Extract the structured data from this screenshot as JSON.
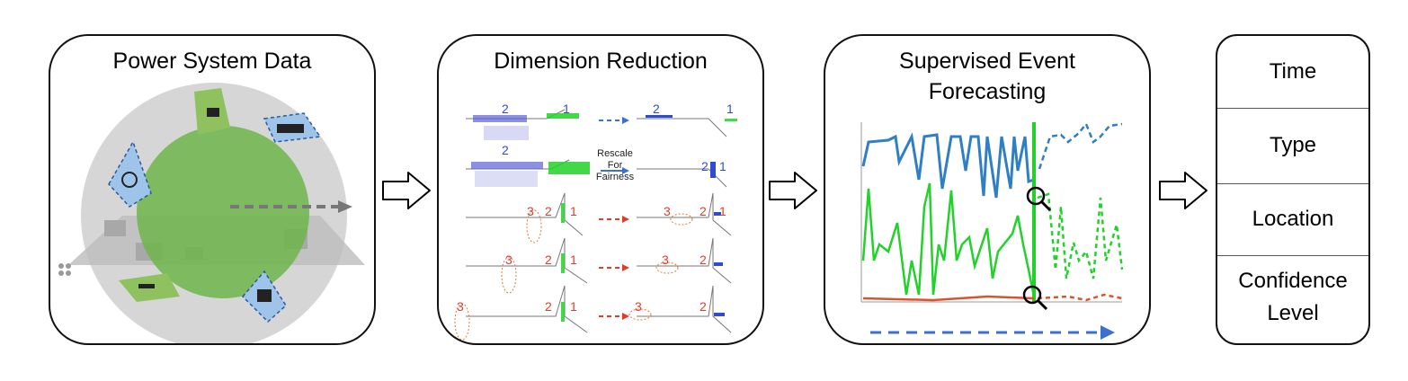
{
  "panels": {
    "power_system": {
      "title": "Power System Data"
    },
    "dimension_reduction": {
      "title": "Dimension Reduction",
      "rescale_note": [
        "Rescale",
        "For",
        "Fairness"
      ],
      "cluster_labels": {
        "blue_left": "2",
        "green_right": "1",
        "red_left": "3",
        "red_mid": "2",
        "red_right": "1"
      }
    },
    "forecasting": {
      "title_line1": "Supervised Event",
      "title_line2": "Forecasting"
    },
    "outputs": {
      "items": [
        "Time",
        "Type",
        "Location",
        "Confidence",
        "Level"
      ]
    }
  },
  "colors": {
    "blue_series": "#2f7fc4",
    "green_series": "#22d22a",
    "red_series": "#d9542a",
    "circle": "#6fb54a",
    "arrow_blue": "#3b6fd4"
  }
}
